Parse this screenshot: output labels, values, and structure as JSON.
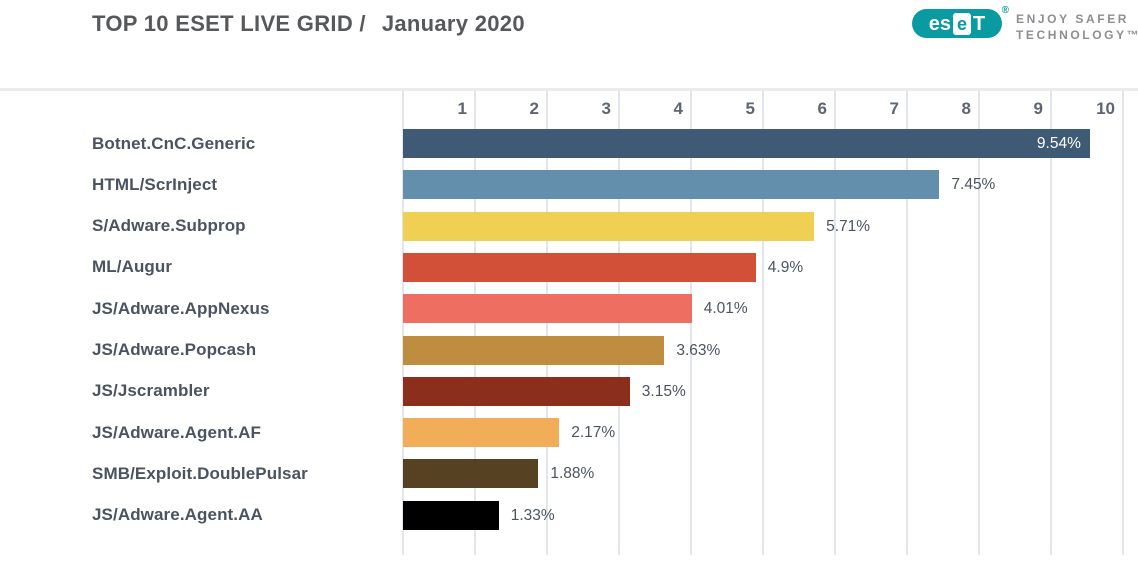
{
  "header": {
    "title_main": "TOP 10 ESET LIVE GRID /",
    "title_period": "January 2020",
    "logo": {
      "brand_part1": "es",
      "brand_part2": "e",
      "brand_part3": "T",
      "registered_mark": "®",
      "tagline_line1": "ENJOY SAFER",
      "tagline_line2": "TECHNOLOGY™",
      "brand_color": "#0a9aa2",
      "tagline_color": "#8c8e91"
    }
  },
  "chart_data": {
    "type": "bar",
    "orientation": "horizontal",
    "title": "TOP 10 ESET LIVE GRID / January 2020",
    "categories": [
      "Botnet.CnC.Generic",
      "HTML/ScrInject",
      "S/Adware.Subprop",
      "ML/Augur",
      "JS/Adware.AppNexus",
      "JS/Adware.Popcash",
      "JS/Jscrambler",
      "JS/Adware.Agent.AF",
      "SMB/Exploit.DoublePulsar",
      "JS/Adware.Agent.AA"
    ],
    "values": [
      9.54,
      7.45,
      5.71,
      4.9,
      4.01,
      3.63,
      3.15,
      2.17,
      1.88,
      1.33
    ],
    "value_labels": [
      "9.54%",
      "7.45%",
      "5.71%",
      "4.9%",
      "4.01%",
      "3.63%",
      "3.15%",
      "2.17%",
      "1.88%",
      "1.33%"
    ],
    "colors": [
      "#3e5a74",
      "#648fac",
      "#efd053",
      "#d25038",
      "#ee6e62",
      "#bf8d3f",
      "#8b2e1b",
      "#f1ad58",
      "#564122",
      "#000000"
    ],
    "value_label_inside": [
      true,
      false,
      false,
      false,
      false,
      false,
      false,
      false,
      false,
      false
    ],
    "xlabel": "",
    "ylabel": "",
    "xlim": [
      0,
      10
    ],
    "x_ticks": [
      "1",
      "2",
      "3",
      "4",
      "5",
      "6",
      "7",
      "8",
      "9",
      "10"
    ],
    "grid": true,
    "gridline_color": "#e2e5ee",
    "tick_position": "top",
    "legend": "none"
  }
}
